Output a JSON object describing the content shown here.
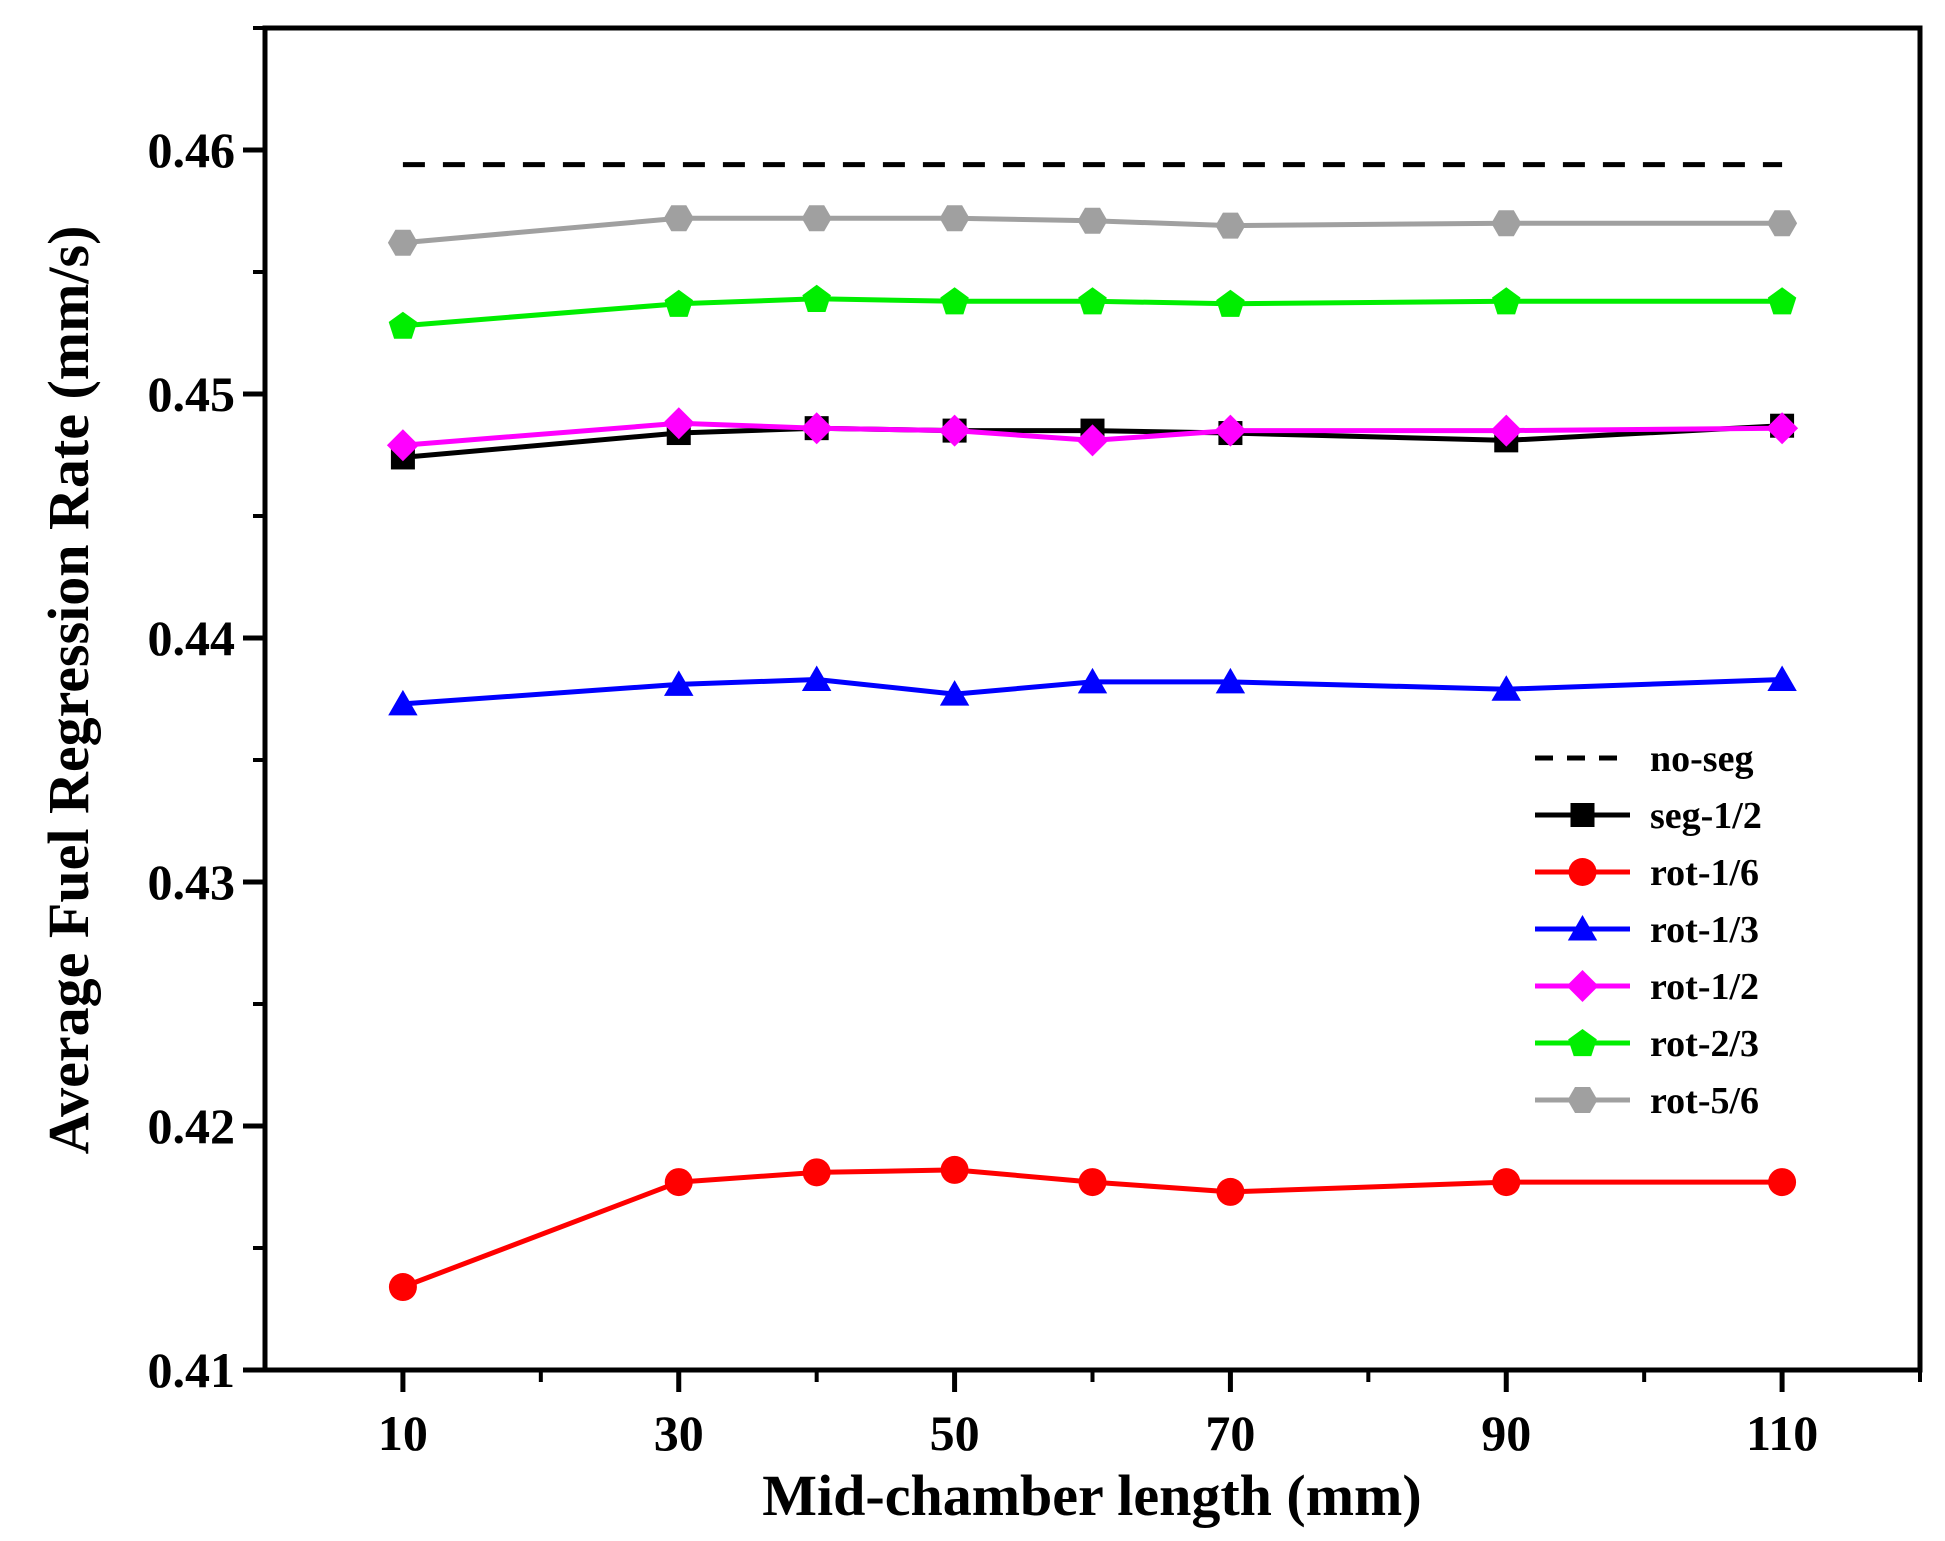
{
  "chart_data": {
    "type": "line",
    "title": "",
    "xlabel": "Mid-chamber length (mm)",
    "ylabel": "Average Fuel Regression Rate (mm/s)",
    "xlim": [
      0,
      120
    ],
    "ylim": [
      0.41,
      0.465
    ],
    "x_ticks": [
      10,
      30,
      50,
      70,
      90,
      110
    ],
    "x_tick_labels": [
      "10",
      "30",
      "50",
      "70",
      "90",
      "110"
    ],
    "y_ticks": [
      0.41,
      0.42,
      0.43,
      0.44,
      0.45,
      0.46
    ],
    "y_tick_labels": [
      "0.41",
      "0.42",
      "0.43",
      "0.44",
      "0.45",
      "0.46"
    ],
    "x": [
      10,
      30,
      40,
      50,
      60,
      70,
      90,
      110
    ],
    "legend_position": "lower-right",
    "series": [
      {
        "name": "no-seg",
        "values": [
          0.4594,
          0.4594,
          0.4594,
          0.4594,
          0.4594,
          0.4594,
          0.4594,
          0.4594
        ],
        "color": "#000000",
        "marker": "none",
        "dashed": true
      },
      {
        "name": "seg-1/2",
        "values": [
          0.4474,
          0.4484,
          0.4486,
          0.4485,
          0.4485,
          0.4484,
          0.4481,
          0.4487
        ],
        "color": "#000000",
        "marker": "square"
      },
      {
        "name": "rot-1/6",
        "values": [
          0.4134,
          0.4177,
          0.4181,
          0.4182,
          0.4177,
          0.4173,
          0.4177,
          0.4177
        ],
        "color": "#ff0000",
        "marker": "circle"
      },
      {
        "name": "rot-1/3",
        "values": [
          0.4373,
          0.4381,
          0.4383,
          0.4377,
          0.4382,
          0.4382,
          0.4379,
          0.4383
        ],
        "color": "#0000ff",
        "marker": "triangle"
      },
      {
        "name": "rot-1/2",
        "values": [
          0.4479,
          0.4488,
          0.4486,
          0.4485,
          0.4481,
          0.4485,
          0.4485,
          0.4486
        ],
        "color": "#ff00ff",
        "marker": "diamond"
      },
      {
        "name": "rot-2/3",
        "values": [
          0.4528,
          0.4537,
          0.4539,
          0.4538,
          0.4538,
          0.4537,
          0.4538,
          0.4538
        ],
        "color": "#00ee00",
        "marker": "pentagon"
      },
      {
        "name": "rot-5/6",
        "values": [
          0.4562,
          0.4572,
          0.4572,
          0.4572,
          0.4571,
          0.4569,
          0.457,
          0.457
        ],
        "color": "#a0a0a0",
        "marker": "hexagon"
      }
    ]
  }
}
